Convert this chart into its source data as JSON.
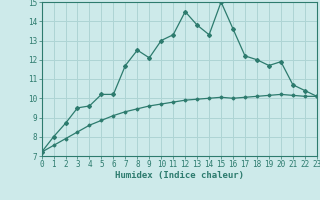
{
  "x": [
    0,
    1,
    2,
    3,
    4,
    5,
    6,
    7,
    8,
    9,
    10,
    11,
    12,
    13,
    14,
    15,
    16,
    17,
    18,
    19,
    20,
    21,
    22,
    23
  ],
  "y_jagged": [
    7.2,
    8.0,
    8.7,
    9.5,
    9.6,
    10.2,
    10.2,
    11.7,
    12.5,
    12.1,
    13.0,
    13.3,
    14.5,
    13.8,
    13.3,
    15.0,
    13.6,
    12.2,
    12.0,
    11.7,
    11.9,
    10.7,
    10.4,
    10.1
  ],
  "y_smooth": [
    7.2,
    7.55,
    7.9,
    8.25,
    8.6,
    8.85,
    9.1,
    9.3,
    9.45,
    9.6,
    9.7,
    9.8,
    9.9,
    9.95,
    10.0,
    10.05,
    10.0,
    10.05,
    10.1,
    10.15,
    10.2,
    10.15,
    10.1,
    10.1
  ],
  "line_color": "#2d7b6e",
  "bg_color": "#cdeaea",
  "grid_color": "#aed4d4",
  "xlabel": "Humidex (Indice chaleur)",
  "ylim": [
    7,
    15
  ],
  "xlim": [
    0,
    23
  ],
  "yticks": [
    7,
    8,
    9,
    10,
    11,
    12,
    13,
    14,
    15
  ],
  "xticks": [
    0,
    1,
    2,
    3,
    4,
    5,
    6,
    7,
    8,
    9,
    10,
    11,
    12,
    13,
    14,
    15,
    16,
    17,
    18,
    19,
    20,
    21,
    22,
    23
  ],
  "tick_fontsize": 5.5,
  "xlabel_fontsize": 6.5
}
